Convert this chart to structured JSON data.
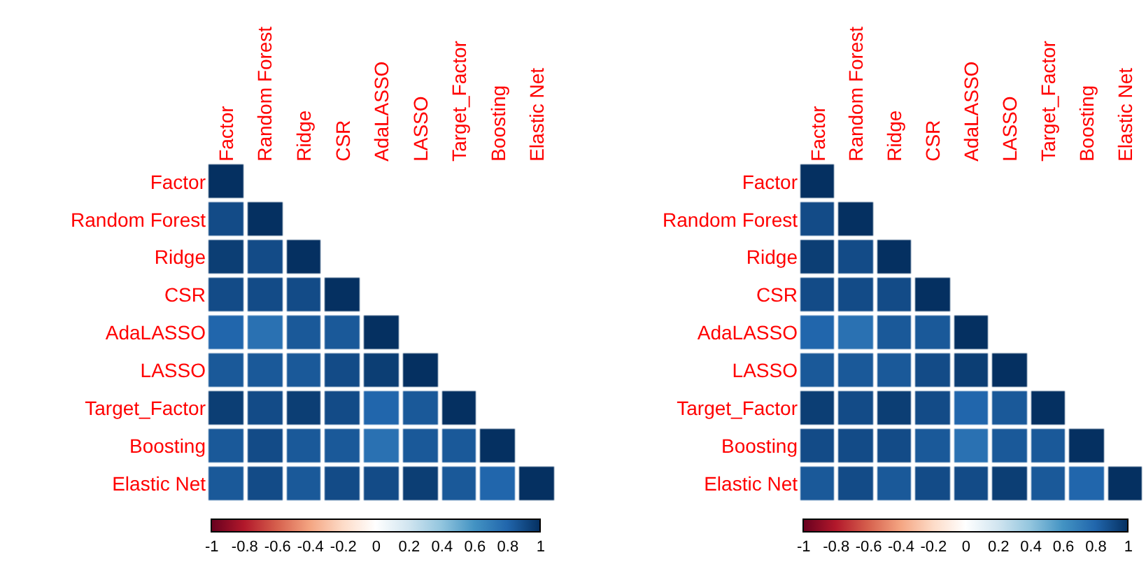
{
  "chart_data": [
    {
      "type": "heatmap",
      "categories": [
        "Factor",
        "Random Forest",
        "Ridge",
        "CSR",
        "AdaLASSO",
        "LASSO",
        "Target_Factor",
        "Boosting",
        "Elastic Net"
      ],
      "y_categories": [
        "Factor",
        "Random Forest",
        "Ridge",
        "CSR",
        "AdaLASSO",
        "LASSO",
        "Target_Factor",
        "Boosting",
        "Elastic Net"
      ],
      "cells": [
        [
          1.0,
          null,
          null,
          null,
          null,
          null,
          null,
          null,
          null
        ],
        [
          0.9,
          1.0,
          null,
          null,
          null,
          null,
          null,
          null,
          null
        ],
        [
          0.95,
          0.9,
          1.0,
          null,
          null,
          null,
          null,
          null,
          null
        ],
        [
          0.9,
          0.9,
          0.9,
          1.0,
          null,
          null,
          null,
          null,
          null
        ],
        [
          0.8,
          0.75,
          0.85,
          0.85,
          1.0,
          null,
          null,
          null,
          null
        ],
        [
          0.85,
          0.85,
          0.85,
          0.9,
          0.95,
          1.0,
          null,
          null,
          null
        ],
        [
          0.95,
          0.9,
          0.95,
          0.9,
          0.8,
          0.85,
          1.0,
          null,
          null
        ],
        [
          0.85,
          0.9,
          0.85,
          0.85,
          0.75,
          0.85,
          0.85,
          1.0,
          null
        ],
        [
          0.85,
          0.9,
          0.85,
          0.9,
          0.9,
          0.95,
          0.85,
          0.8,
          1.0
        ]
      ],
      "clim": [
        -1,
        1
      ],
      "cticks": [
        -1,
        -0.8,
        -0.6,
        -0.4,
        -0.2,
        0,
        0.2,
        0.4,
        0.6,
        0.8,
        1
      ]
    },
    {
      "type": "heatmap",
      "categories": [
        "Factor",
        "Random Forest",
        "Ridge",
        "CSR",
        "AdaLASSO",
        "LASSO",
        "Target_Factor",
        "Boosting",
        "Elastic Net"
      ],
      "y_categories": [
        "Factor",
        "Random Forest",
        "Ridge",
        "CSR",
        "AdaLASSO",
        "LASSO",
        "Target_Factor",
        "Boosting",
        "Elastic Net"
      ],
      "cells": [
        [
          1.0,
          null,
          null,
          null,
          null,
          null,
          null,
          null,
          null
        ],
        [
          0.9,
          1.0,
          null,
          null,
          null,
          null,
          null,
          null,
          null
        ],
        [
          0.95,
          0.9,
          1.0,
          null,
          null,
          null,
          null,
          null,
          null
        ],
        [
          0.9,
          0.9,
          0.9,
          1.0,
          null,
          null,
          null,
          null,
          null
        ],
        [
          0.8,
          0.75,
          0.85,
          0.85,
          1.0,
          null,
          null,
          null,
          null
        ],
        [
          0.85,
          0.85,
          0.85,
          0.9,
          0.95,
          1.0,
          null,
          null,
          null
        ],
        [
          0.95,
          0.9,
          0.95,
          0.9,
          0.8,
          0.85,
          1.0,
          null,
          null
        ],
        [
          0.9,
          0.9,
          0.9,
          0.85,
          0.75,
          0.85,
          0.85,
          1.0,
          null
        ],
        [
          0.85,
          0.9,
          0.85,
          0.9,
          0.9,
          0.95,
          0.85,
          0.8,
          1.0
        ]
      ],
      "clim": [
        -1,
        1
      ],
      "cticks": [
        -1,
        -0.8,
        -0.6,
        -0.4,
        -0.2,
        0,
        0.2,
        0.4,
        0.6,
        0.8,
        1
      ]
    }
  ]
}
